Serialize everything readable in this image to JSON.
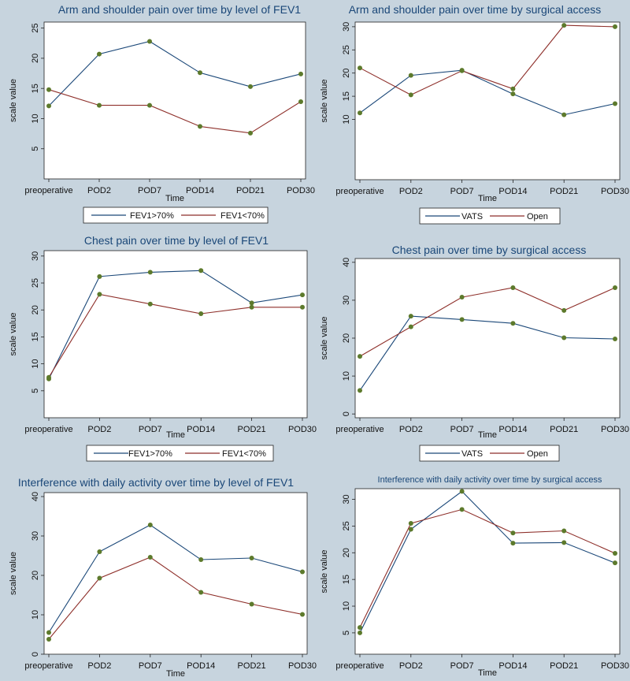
{
  "colors": {
    "background": "#c7d4de",
    "plot_area": "#ffffff",
    "series_blue": "#1a4778",
    "series_red": "#8e2f2a",
    "marker": "#5d7a2c",
    "title": "#1a4778"
  },
  "chart_data": [
    {
      "type": "line",
      "title": "Arm and shoulder pain over time by level of FEV1",
      "xlabel": "Time",
      "ylabel": "scale value",
      "categories": [
        "preoperative",
        "POD2",
        "POD7",
        "POD14",
        "POD21",
        "POD30"
      ],
      "ylim": [
        0,
        26
      ],
      "yticks": [
        5,
        10,
        15,
        20,
        25
      ],
      "series": [
        {
          "name": "FEV1>70%",
          "color": "blue",
          "values": [
            12.1,
            20.7,
            22.8,
            17.6,
            15.3,
            17.4
          ]
        },
        {
          "name": "FEV1<70%",
          "color": "red",
          "values": [
            14.8,
            12.2,
            12.2,
            8.7,
            7.6,
            12.8
          ]
        }
      ]
    },
    {
      "type": "line",
      "title": "Arm and shoulder pain over time by surgical access",
      "xlabel": "Time",
      "ylabel": "scale value",
      "categories": [
        "preoperative",
        "POD2",
        "POD7",
        "POD14",
        "POD21",
        "POD30"
      ],
      "ylim": [
        -3,
        31
      ],
      "yticks": [
        10,
        15,
        20,
        25,
        30
      ],
      "series": [
        {
          "name": "VATS",
          "color": "blue",
          "values": [
            11.4,
            19.5,
            20.6,
            15.5,
            11.0,
            13.4
          ]
        },
        {
          "name": "Open",
          "color": "red",
          "values": [
            21.1,
            15.3,
            20.5,
            16.6,
            30.3,
            30.0
          ]
        }
      ]
    },
    {
      "type": "line",
      "title": "Chest pain over time by level of FEV1",
      "xlabel": "Time",
      "ylabel": "scale value",
      "categories": [
        "preoperative",
        "POD2",
        "POD7",
        "POD14",
        "POD21",
        "POD30"
      ],
      "ylim": [
        0,
        31
      ],
      "yticks": [
        5,
        10,
        15,
        20,
        25,
        30
      ],
      "series": [
        {
          "name": "FEV1>70%",
          "color": "blue",
          "values": [
            7.2,
            26.2,
            27.0,
            27.3,
            21.3,
            22.8
          ]
        },
        {
          "name": "FEV1<70%",
          "color": "red",
          "values": [
            7.5,
            22.9,
            21.1,
            19.3,
            20.5,
            20.5
          ]
        }
      ]
    },
    {
      "type": "line",
      "title": "Chest pain over time by surgical access",
      "xlabel": "Time",
      "ylabel": "scale value",
      "categories": [
        "preoperative",
        "POD2",
        "POD7",
        "POD14",
        "POD21",
        "POD30"
      ],
      "ylim": [
        -1,
        41
      ],
      "yticks": [
        0,
        10,
        20,
        30,
        40
      ],
      "series": [
        {
          "name": "VATS",
          "color": "blue",
          "values": [
            6.2,
            25.8,
            24.9,
            23.9,
            20.1,
            19.8
          ]
        },
        {
          "name": "Open",
          "color": "red",
          "values": [
            15.2,
            23.0,
            30.8,
            33.3,
            27.3,
            33.3
          ]
        }
      ]
    },
    {
      "type": "line",
      "title": "Interference with daily activity over time by level of FEV1",
      "xlabel": "Time",
      "ylabel": "scale value",
      "categories": [
        "preoperative",
        "POD2",
        "POD7",
        "POD14",
        "POD21",
        "POD30"
      ],
      "ylim": [
        0,
        41
      ],
      "yticks": [
        0,
        10,
        20,
        30,
        40
      ],
      "series": [
        {
          "name": "FEV1>70%",
          "color": "blue",
          "values": [
            5.5,
            26.0,
            32.8,
            24.0,
            24.4,
            20.9
          ]
        },
        {
          "name": "FEV1<70%",
          "color": "red",
          "values": [
            3.8,
            19.3,
            24.6,
            15.7,
            12.7,
            10.1
          ]
        }
      ]
    },
    {
      "type": "line",
      "title": "Interference with daily activity over time by surgical access",
      "xlabel": "Time",
      "ylabel": "scale value",
      "categories": [
        "preoperative",
        "POD2",
        "POD7",
        "POD14",
        "POD21",
        "POD30"
      ],
      "ylim": [
        1,
        32
      ],
      "yticks": [
        5,
        10,
        15,
        20,
        25,
        30
      ],
      "series": [
        {
          "name": "VATS",
          "color": "blue",
          "values": [
            5.0,
            24.4,
            31.5,
            21.8,
            21.9,
            18.1
          ]
        },
        {
          "name": "Open",
          "color": "red",
          "values": [
            6.0,
            25.5,
            28.1,
            23.7,
            24.1,
            19.9
          ]
        }
      ]
    }
  ]
}
